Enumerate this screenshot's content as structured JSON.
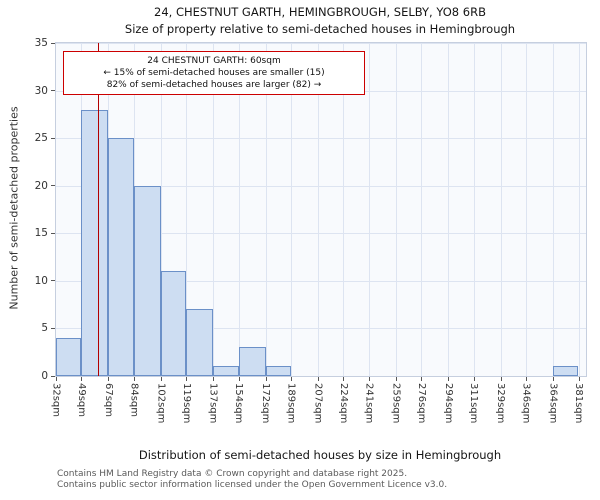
{
  "title": "24, CHESTNUT GARTH, HEMINGBROUGH, SELBY, YO8 6RB",
  "subtitle": "Size of property relative to semi-detached houses in Hemingbrough",
  "annotation": {
    "line1": "24 CHESTNUT GARTH: 60sqm",
    "line2": "← 15% of semi-detached houses are smaller (15)",
    "line3": "82% of semi-detached houses are larger (82) →"
  },
  "footer": {
    "line1": "Contains HM Land Registry data © Crown copyright and database right 2025.",
    "line2": "Contains public sector information licensed under the Open Government Licence v3.0."
  },
  "chart_data": {
    "type": "bar",
    "title": "24, CHESTNUT GARTH, HEMINGBROUGH, SELBY, YO8 6RB",
    "subtitle": "Size of property relative to semi-detached houses in Hemingbrough",
    "xlabel": "Distribution of semi-detached houses by size in Hemingbrough",
    "ylabel": "Number of semi-detached properties",
    "bin_edges_sqm": [
      32,
      49,
      67,
      84,
      102,
      119,
      137,
      154,
      172,
      189,
      207,
      224,
      241,
      259,
      276,
      294,
      311,
      329,
      346,
      364,
      381
    ],
    "tick_labels": [
      "32sqm",
      "49sqm",
      "67sqm",
      "84sqm",
      "102sqm",
      "119sqm",
      "137sqm",
      "154sqm",
      "172sqm",
      "189sqm",
      "207sqm",
      "224sqm",
      "241sqm",
      "259sqm",
      "276sqm",
      "294sqm",
      "311sqm",
      "329sqm",
      "346sqm",
      "364sqm",
      "381sqm"
    ],
    "values": [
      4,
      28,
      25,
      20,
      11,
      7,
      1,
      3,
      1,
      0,
      0,
      0,
      0,
      0,
      0,
      0,
      0,
      0,
      0,
      1
    ],
    "yticks": [
      0,
      5,
      10,
      15,
      20,
      25,
      30,
      35
    ],
    "ylim": [
      0,
      35
    ],
    "xlim": [
      32,
      386
    ],
    "grid": true,
    "legend": "none",
    "marker_value_sqm": 60,
    "marker_color": "#b30000",
    "bar_fill": "#cdddf2",
    "bar_border": "#6b90c8"
  }
}
